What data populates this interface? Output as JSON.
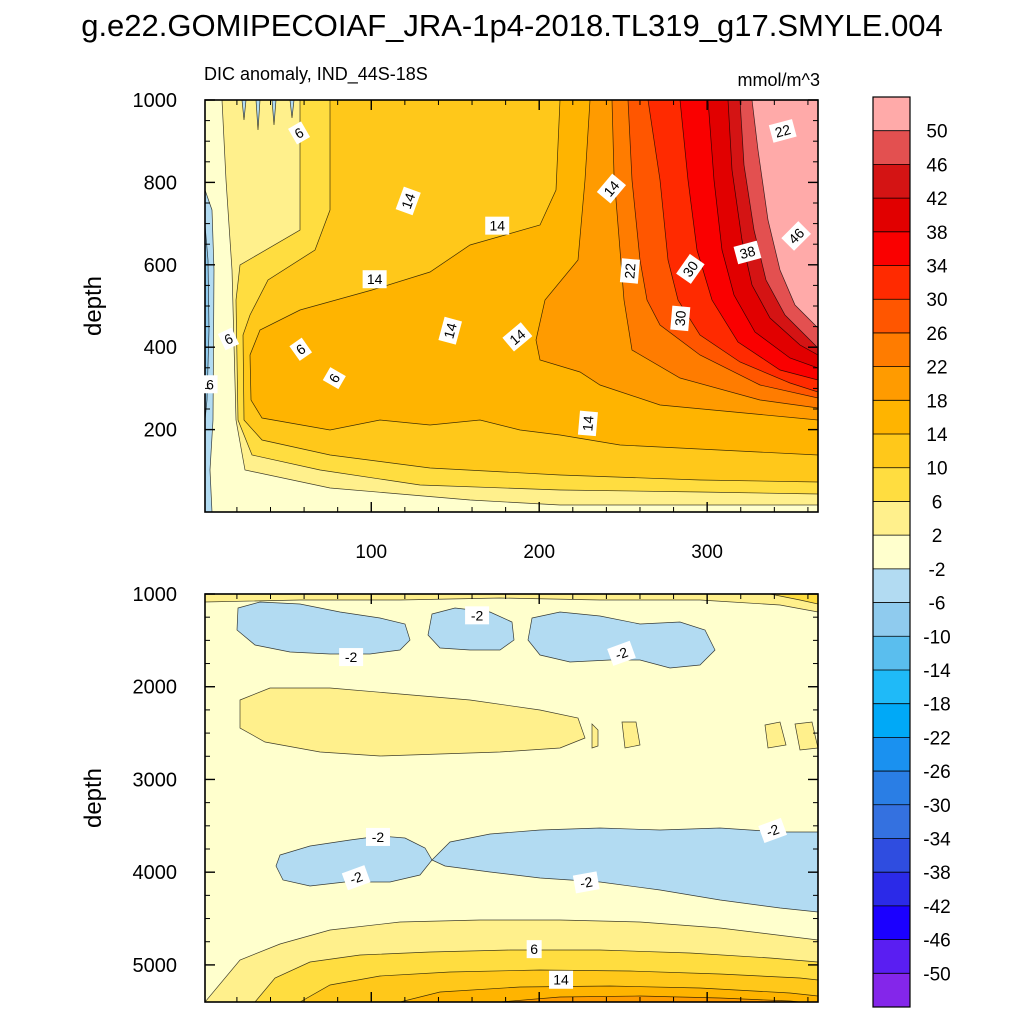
{
  "chart_data": {
    "type": "heatmap",
    "title": "g.e22.GOMIPECOIAF_JRA-1p4-2018.TL319_g17.SMYLE.004",
    "subtitle_left": "DIC anomaly, IND_44S-18S",
    "subtitle_right": "mmol/m^3",
    "xlabel": "",
    "x_ticks": [
      "100",
      "200",
      "300"
    ],
    "xlim": [
      1,
      366
    ],
    "panels": [
      {
        "name": "upper",
        "ylabel": "depth",
        "ylim": [
          1000,
          0
        ],
        "y_ticks": [
          "200",
          "400",
          "600",
          "800",
          "1000"
        ],
        "contour_labels": [
          {
            "text": "6",
            "x": 15,
            "y": 420,
            "rot": -25
          },
          {
            "text": "6",
            "x": 58,
            "y": 395,
            "rot": -35
          },
          {
            "text": "6",
            "x": 4,
            "y": 310,
            "rot": 0
          },
          {
            "text": "6",
            "x": 78,
            "y": 325,
            "rot": -60
          },
          {
            "text": "14",
            "x": 102,
            "y": 565,
            "rot": 0
          },
          {
            "text": "14",
            "x": 147,
            "y": 440,
            "rot": -75
          },
          {
            "text": "14",
            "x": 187,
            "y": 425,
            "rot": -40
          },
          {
            "text": "14",
            "x": 229,
            "y": 215,
            "rot": -85
          },
          {
            "text": "14",
            "x": 122,
            "y": 755,
            "rot": -70
          },
          {
            "text": "14",
            "x": 175,
            "y": 695,
            "rot": 0
          },
          {
            "text": "14",
            "x": 243,
            "y": 785,
            "rot": -50
          },
          {
            "text": "6",
            "x": 57,
            "y": 920,
            "rot": -30
          },
          {
            "text": "22",
            "x": 254,
            "y": 585,
            "rot": -85
          },
          {
            "text": "30",
            "x": 284,
            "y": 470,
            "rot": -85
          },
          {
            "text": "30",
            "x": 290,
            "y": 590,
            "rot": -55
          },
          {
            "text": "38",
            "x": 324,
            "y": 630,
            "rot": -15
          },
          {
            "text": "46",
            "x": 353,
            "y": 670,
            "rot": -45
          },
          {
            "text": "22",
            "x": 345,
            "y": 925,
            "rot": -15
          }
        ]
      },
      {
        "name": "lower",
        "ylabel": "depth",
        "ylim": [
          1000,
          5400
        ],
        "y_ticks": [
          "1000",
          "2000",
          "3000",
          "4000",
          "5000"
        ],
        "contour_labels": [
          {
            "text": "-2",
            "x": 163,
            "y": 1230,
            "rot": 0
          },
          {
            "text": "-2",
            "x": 88,
            "y": 1680,
            "rot": 0
          },
          {
            "text": "-2",
            "x": 249,
            "y": 1640,
            "rot": -20
          },
          {
            "text": "-2",
            "x": 104,
            "y": 3620,
            "rot": 0
          },
          {
            "text": "-2",
            "x": 91,
            "y": 4060,
            "rot": -20
          },
          {
            "text": "-2",
            "x": 228,
            "y": 4110,
            "rot": -10
          },
          {
            "text": "-2",
            "x": 339,
            "y": 3550,
            "rot": -20
          },
          {
            "text": "6",
            "x": 197,
            "y": 4830,
            "rot": 0
          },
          {
            "text": "14",
            "x": 213,
            "y": 5160,
            "rot": 0
          }
        ]
      }
    ],
    "colorbar": {
      "levels": [
        "50",
        "46",
        "42",
        "38",
        "34",
        "30",
        "26",
        "22",
        "18",
        "14",
        "10",
        "6",
        "2",
        "-2",
        "-6",
        "-10",
        "-14",
        "-18",
        "-22",
        "-26",
        "-30",
        "-34",
        "-38",
        "-42",
        "-46",
        "-50"
      ],
      "colors": [
        "#ffaaa9",
        "#e35050",
        "#d41414",
        "#e10000",
        "#fa0000",
        "#ff2a00",
        "#ff5600",
        "#ff7c00",
        "#ff9b00",
        "#ffb400",
        "#ffc81a",
        "#ffdd40",
        "#fff08c",
        "#ffffcd",
        "#b2dbf2",
        "#8fcbee",
        "#5abeee",
        "#1fbaf8",
        "#00a9f7",
        "#1a91f0",
        "#2a7ee5",
        "#3471e0",
        "#2f4de0",
        "#2b2ae8",
        "#1b00ff",
        "#5a1ef2",
        "#8426ea"
      ]
    },
    "field_colors": {
      "c_n6": "#b2dbf2",
      "c_n10": "#8fcbee",
      "c_n14": "#5abeee",
      "c_n2": "#ffffcd",
      "c_2": "#fff08c",
      "c_6": "#ffdd40",
      "c_10": "#ffc81a",
      "c_14": "#ffb400",
      "c_18": "#ff9b00",
      "c_22": "#ff7c00",
      "c_26": "#ff5600",
      "c_30": "#ff2a00",
      "c_34": "#fa0000",
      "c_38": "#e10000",
      "c_42": "#d41414",
      "c_46": "#e35050",
      "c_50": "#ffaaa9"
    }
  }
}
